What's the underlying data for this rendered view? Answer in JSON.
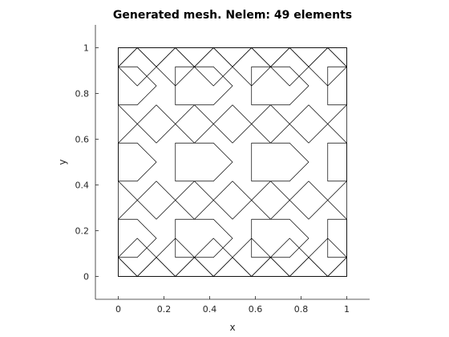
{
  "figure": {
    "title": "Generated mesh. Nelem: 49 elements",
    "xlabel": "x",
    "ylabel": "y"
  },
  "chart_data": {
    "type": "mesh",
    "title": "Generated mesh. Nelem: 49 elements",
    "xlabel": "x",
    "ylabel": "y",
    "xlim": [
      -0.1,
      1.1
    ],
    "ylim": [
      -0.1,
      1.1
    ],
    "xticks": [
      0,
      0.2,
      0.4,
      0.6,
      0.8,
      1
    ],
    "yticks": [
      0,
      0.2,
      0.4,
      0.6,
      0.8,
      1
    ],
    "xtick_labels": [
      "0",
      "0.2",
      "0.4",
      "0.6",
      "0.8",
      "1"
    ],
    "ytick_labels": [
      "0",
      "0.2",
      "0.4",
      "0.6",
      "0.8",
      "1"
    ],
    "grid": false,
    "elements_per_title": 49,
    "line_color": "#000000",
    "polygons": [
      [
        [
          0,
          0
        ],
        [
          0.0833,
          0
        ],
        [
          0,
          0.0833
        ]
      ],
      [
        [
          0.0833,
          0
        ],
        [
          0.25,
          0
        ],
        [
          0.1667,
          0.0833
        ]
      ],
      [
        [
          0.25,
          0
        ],
        [
          0.4167,
          0
        ],
        [
          0.3333,
          0.0833
        ]
      ],
      [
        [
          0.4167,
          0
        ],
        [
          0.5833,
          0
        ],
        [
          0.5,
          0.0833
        ]
      ],
      [
        [
          0.5833,
          0
        ],
        [
          0.75,
          0
        ],
        [
          0.6667,
          0.0833
        ]
      ],
      [
        [
          0.75,
          0
        ],
        [
          0.9167,
          0
        ],
        [
          0.8333,
          0.0833
        ]
      ],
      [
        [
          0.9167,
          0
        ],
        [
          1,
          0
        ],
        [
          1,
          0.0833
        ]
      ],
      [
        [
          0,
          1
        ],
        [
          0.0833,
          1
        ],
        [
          0,
          0.9167
        ]
      ],
      [
        [
          0.0833,
          1
        ],
        [
          0.25,
          1
        ],
        [
          0.1667,
          0.9167
        ]
      ],
      [
        [
          0.25,
          1
        ],
        [
          0.4167,
          1
        ],
        [
          0.3333,
          0.9167
        ]
      ],
      [
        [
          0.4167,
          1
        ],
        [
          0.5833,
          1
        ],
        [
          0.5,
          0.9167
        ]
      ],
      [
        [
          0.5833,
          1
        ],
        [
          0.75,
          1
        ],
        [
          0.6667,
          0.9167
        ]
      ],
      [
        [
          0.75,
          1
        ],
        [
          0.9167,
          1
        ],
        [
          0.8333,
          0.9167
        ]
      ],
      [
        [
          0.9167,
          1
        ],
        [
          1,
          1
        ],
        [
          1,
          0.9167
        ]
      ],
      [
        [
          0,
          0.0833
        ],
        [
          0.0833,
          0
        ],
        [
          0.1667,
          0.0833
        ],
        [
          0.0833,
          0.1667
        ]
      ],
      [
        [
          0.1667,
          0.0833
        ],
        [
          0.25,
          0
        ],
        [
          0.3333,
          0.0833
        ],
        [
          0.25,
          0.1667
        ]
      ],
      [
        [
          0.3333,
          0.0833
        ],
        [
          0.4167,
          0
        ],
        [
          0.5,
          0.0833
        ],
        [
          0.4167,
          0.1667
        ]
      ],
      [
        [
          0.5,
          0.0833
        ],
        [
          0.5833,
          0
        ],
        [
          0.6667,
          0.0833
        ],
        [
          0.5833,
          0.1667
        ]
      ],
      [
        [
          0.6667,
          0.0833
        ],
        [
          0.75,
          0
        ],
        [
          0.8333,
          0.0833
        ],
        [
          0.75,
          0.1667
        ]
      ],
      [
        [
          0.8333,
          0.0833
        ],
        [
          0.9167,
          0
        ],
        [
          1,
          0.0833
        ],
        [
          0.9167,
          0.1667
        ]
      ],
      [
        [
          0,
          0.9167
        ],
        [
          0.0833,
          1
        ],
        [
          0.1667,
          0.9167
        ],
        [
          0.0833,
          0.8333
        ]
      ],
      [
        [
          0.1667,
          0.9167
        ],
        [
          0.25,
          1
        ],
        [
          0.3333,
          0.9167
        ],
        [
          0.25,
          0.8333
        ]
      ],
      [
        [
          0.3333,
          0.9167
        ],
        [
          0.4167,
          1
        ],
        [
          0.5,
          0.9167
        ],
        [
          0.4167,
          0.8333
        ]
      ],
      [
        [
          0.5,
          0.9167
        ],
        [
          0.5833,
          1
        ],
        [
          0.6667,
          0.9167
        ],
        [
          0.5833,
          0.8333
        ]
      ],
      [
        [
          0.6667,
          0.9167
        ],
        [
          0.75,
          1
        ],
        [
          0.8333,
          0.9167
        ],
        [
          0.75,
          0.8333
        ]
      ],
      [
        [
          0.8333,
          0.9167
        ],
        [
          0.9167,
          1
        ],
        [
          1,
          0.9167
        ],
        [
          0.9167,
          0.8333
        ]
      ],
      [
        [
          0,
          0.0833
        ],
        [
          0.0833,
          0.0833
        ],
        [
          0.1667,
          0.1667
        ],
        [
          0.0833,
          0.25
        ],
        [
          0,
          0.25
        ]
      ],
      [
        [
          0,
          0.4167
        ],
        [
          0.0833,
          0.4167
        ],
        [
          0.1667,
          0.5
        ],
        [
          0.0833,
          0.5833
        ],
        [
          0,
          0.5833
        ]
      ],
      [
        [
          0,
          0.75
        ],
        [
          0.0833,
          0.75
        ],
        [
          0.1667,
          0.8333
        ],
        [
          0.0833,
          0.9167
        ],
        [
          0,
          0.9167
        ]
      ],
      [
        [
          0.25,
          0.0833
        ],
        [
          0.4167,
          0.0833
        ],
        [
          0.5,
          0.1667
        ],
        [
          0.4167,
          0.25
        ],
        [
          0.25,
          0.25
        ]
      ],
      [
        [
          0.25,
          0.4167
        ],
        [
          0.4167,
          0.4167
        ],
        [
          0.5,
          0.5
        ],
        [
          0.4167,
          0.5833
        ],
        [
          0.25,
          0.5833
        ]
      ],
      [
        [
          0.25,
          0.75
        ],
        [
          0.4167,
          0.75
        ],
        [
          0.5,
          0.8333
        ],
        [
          0.4167,
          0.9167
        ],
        [
          0.25,
          0.9167
        ]
      ],
      [
        [
          0.5833,
          0.0833
        ],
        [
          0.75,
          0.0833
        ],
        [
          0.8333,
          0.1667
        ],
        [
          0.75,
          0.25
        ],
        [
          0.5833,
          0.25
        ]
      ],
      [
        [
          0.5833,
          0.4167
        ],
        [
          0.75,
          0.4167
        ],
        [
          0.8333,
          0.5
        ],
        [
          0.75,
          0.5833
        ],
        [
          0.5833,
          0.5833
        ]
      ],
      [
        [
          0.5833,
          0.75
        ],
        [
          0.75,
          0.75
        ],
        [
          0.8333,
          0.8333
        ],
        [
          0.75,
          0.9167
        ],
        [
          0.5833,
          0.9167
        ]
      ],
      [
        [
          0.9167,
          0.0833
        ],
        [
          1,
          0.0833
        ],
        [
          1,
          0.25
        ],
        [
          0.9167,
          0.25
        ]
      ],
      [
        [
          0.9167,
          0.4167
        ],
        [
          1,
          0.4167
        ],
        [
          1,
          0.5833
        ],
        [
          0.9167,
          0.5833
        ]
      ],
      [
        [
          0.9167,
          0.75
        ],
        [
          1,
          0.75
        ],
        [
          1,
          0.9167
        ],
        [
          0.9167,
          0.9167
        ]
      ]
    ],
    "segments": [
      [
        [
          0,
          0.25
        ],
        [
          0.1667,
          0.4167
        ]
      ],
      [
        [
          0.1667,
          0.25
        ],
        [
          0,
          0.4167
        ]
      ],
      [
        [
          0.1667,
          0.25
        ],
        [
          0.3333,
          0.4167
        ]
      ],
      [
        [
          0.3333,
          0.25
        ],
        [
          0.1667,
          0.4167
        ]
      ],
      [
        [
          0.3333,
          0.25
        ],
        [
          0.5,
          0.4167
        ]
      ],
      [
        [
          0.5,
          0.25
        ],
        [
          0.3333,
          0.4167
        ]
      ],
      [
        [
          0.5,
          0.25
        ],
        [
          0.6667,
          0.4167
        ]
      ],
      [
        [
          0.6667,
          0.25
        ],
        [
          0.5,
          0.4167
        ]
      ],
      [
        [
          0.6667,
          0.25
        ],
        [
          0.8333,
          0.4167
        ]
      ],
      [
        [
          0.8333,
          0.25
        ],
        [
          0.6667,
          0.4167
        ]
      ],
      [
        [
          0.8333,
          0.25
        ],
        [
          1,
          0.4167
        ]
      ],
      [
        [
          1,
          0.25
        ],
        [
          0.8333,
          0.4167
        ]
      ],
      [
        [
          0,
          0.5833
        ],
        [
          0.1667,
          0.75
        ]
      ],
      [
        [
          0.1667,
          0.5833
        ],
        [
          0,
          0.75
        ]
      ],
      [
        [
          0.1667,
          0.5833
        ],
        [
          0.3333,
          0.75
        ]
      ],
      [
        [
          0.3333,
          0.5833
        ],
        [
          0.1667,
          0.75
        ]
      ],
      [
        [
          0.3333,
          0.5833
        ],
        [
          0.5,
          0.75
        ]
      ],
      [
        [
          0.5,
          0.5833
        ],
        [
          0.3333,
          0.75
        ]
      ],
      [
        [
          0.5,
          0.5833
        ],
        [
          0.6667,
          0.75
        ]
      ],
      [
        [
          0.6667,
          0.5833
        ],
        [
          0.5,
          0.75
        ]
      ],
      [
        [
          0.6667,
          0.5833
        ],
        [
          0.8333,
          0.75
        ]
      ],
      [
        [
          0.8333,
          0.5833
        ],
        [
          0.6667,
          0.75
        ]
      ],
      [
        [
          0.8333,
          0.5833
        ],
        [
          1,
          0.75
        ]
      ],
      [
        [
          1,
          0.5833
        ],
        [
          0.8333,
          0.75
        ]
      ]
    ]
  }
}
